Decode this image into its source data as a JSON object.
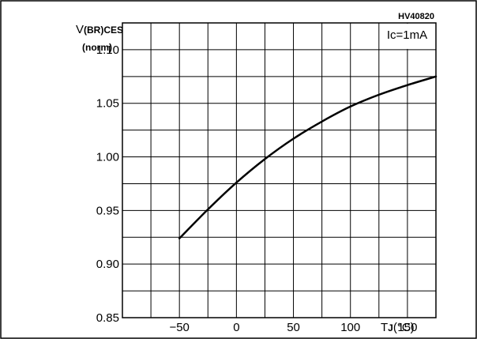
{
  "chart_data": {
    "type": "line",
    "figure_code": "HV40820",
    "condition": "Ic=1mA",
    "ylabel_main": "V",
    "ylabel_sub": "(BR)CES",
    "ylabel_norm": "(norm)",
    "xlabel_main": "T",
    "xlabel_sub": "J",
    "xlabel_unit": "(°C)",
    "xlim": [
      -100,
      175
    ],
    "ylim": [
      0.85,
      1.125
    ],
    "x_ticks": [
      -50,
      0,
      50,
      100,
      150
    ],
    "x_tick_labels": [
      "−50",
      "0",
      "50",
      "100",
      "150"
    ],
    "y_ticks": [
      0.85,
      0.9,
      0.95,
      1.0,
      1.05,
      1.1
    ],
    "y_tick_labels": [
      "0.85",
      "0.90",
      "0.95",
      "1.00",
      "1.05",
      "1.10"
    ],
    "grid": true,
    "x_grid_step": 25,
    "y_grid_step": 0.025,
    "series": [
      {
        "x": [
          -50,
          -25,
          0,
          25,
          50,
          75,
          100,
          125,
          150,
          175
        ],
        "y": [
          0.924,
          0.951,
          0.976,
          0.998,
          1.017,
          1.033,
          1.047,
          1.058,
          1.067,
          1.075
        ]
      }
    ],
    "line_color": "#000000"
  }
}
